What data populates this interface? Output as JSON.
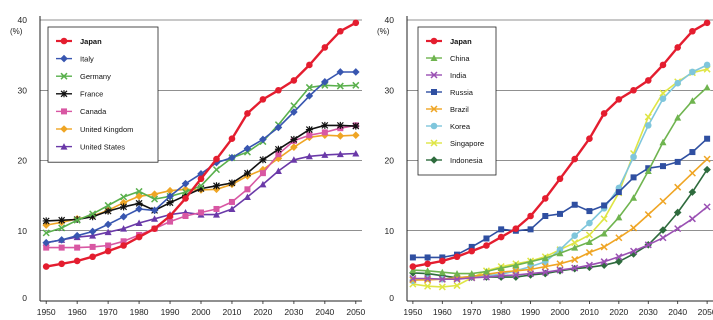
{
  "chart_data": [
    {
      "type": "line",
      "ylabel": "(%)",
      "ytick_labels": [
        "0",
        "10",
        "20",
        "30",
        "40"
      ],
      "xtick_labels": [
        "1950",
        "1960",
        "1970",
        "1980",
        "1990",
        "2000",
        "2010",
        "2020",
        "2030",
        "2040",
        "2050"
      ],
      "x": [
        1950,
        1955,
        1960,
        1965,
        1970,
        1975,
        1980,
        1985,
        1990,
        1995,
        2000,
        2005,
        2010,
        2015,
        2020,
        2025,
        2030,
        2035,
        2040,
        2045,
        2050
      ],
      "ylim": [
        0,
        40
      ],
      "xlim": [
        1948,
        2052
      ],
      "grid": "horizontal",
      "legend_position": "top-left",
      "series": [
        {
          "name": "Japan",
          "color": "#e41d2f",
          "marker": "circle",
          "bold": true,
          "values": [
            4.9,
            5.3,
            5.7,
            6.3,
            7.1,
            7.9,
            9.1,
            10.3,
            12.1,
            14.6,
            17.4,
            20.2,
            23.1,
            26.7,
            28.7,
            30.0,
            31.4,
            33.6,
            36.1,
            38.4,
            39.6
          ]
        },
        {
          "name": "Italy",
          "color": "#3856b0",
          "marker": "diamond",
          "values": [
            8.3,
            8.7,
            9.3,
            9.9,
            10.9,
            12.0,
            13.1,
            12.9,
            14.9,
            16.7,
            18.1,
            19.7,
            20.4,
            21.7,
            23.0,
            24.7,
            26.9,
            29.2,
            31.2,
            32.6,
            32.6
          ]
        },
        {
          "name": "Germany",
          "color": "#5ab04d",
          "marker": "x",
          "values": [
            9.7,
            10.4,
            11.5,
            12.4,
            13.6,
            14.8,
            15.6,
            14.5,
            14.9,
            15.5,
            16.4,
            18.7,
            20.4,
            21.2,
            22.7,
            25.1,
            27.8,
            30.4,
            30.7,
            30.6,
            30.7
          ]
        },
        {
          "name": "France",
          "color": "#111111",
          "marker": "star",
          "values": [
            11.4,
            11.5,
            11.6,
            12.0,
            12.8,
            13.4,
            13.9,
            12.9,
            14.0,
            15.0,
            16.0,
            16.4,
            16.8,
            18.2,
            20.1,
            21.6,
            23.0,
            24.4,
            25.0,
            25.0,
            24.9
          ]
        },
        {
          "name": "Canada",
          "color": "#d857a3",
          "marker": "square",
          "values": [
            7.6,
            7.6,
            7.6,
            7.7,
            7.9,
            8.5,
            9.4,
            10.3,
            11.3,
            12.1,
            12.6,
            13.1,
            14.1,
            15.9,
            18.2,
            20.9,
            22.8,
            23.6,
            24.0,
            24.6,
            25.0
          ]
        },
        {
          "name": "United Kingdom",
          "color": "#efa524",
          "marker": "diamond",
          "values": [
            10.8,
            11.2,
            11.7,
            12.1,
            12.9,
            14.0,
            14.9,
            15.2,
            15.7,
            15.9,
            15.8,
            15.9,
            16.6,
            17.8,
            18.7,
            20.3,
            21.9,
            23.3,
            23.6,
            23.5,
            23.6
          ]
        },
        {
          "name": "United States",
          "color": "#6a39a8",
          "marker": "triangle",
          "values": [
            8.3,
            8.7,
            9.1,
            9.3,
            9.8,
            10.3,
            11.1,
            11.7,
            12.3,
            12.6,
            12.3,
            12.3,
            13.1,
            14.8,
            16.6,
            18.5,
            20.1,
            20.6,
            20.8,
            20.9,
            21.0
          ]
        }
      ]
    },
    {
      "type": "line",
      "ylabel": "(%)",
      "ytick_labels": [
        "0",
        "10",
        "20",
        "30",
        "40"
      ],
      "xtick_labels": [
        "1950",
        "1960",
        "1970",
        "1980",
        "1990",
        "2000",
        "2010",
        "2020",
        "2030",
        "2040",
        "2050"
      ],
      "x": [
        1950,
        1955,
        1960,
        1965,
        1970,
        1975,
        1980,
        1985,
        1990,
        1995,
        2000,
        2005,
        2010,
        2015,
        2020,
        2025,
        2030,
        2035,
        2040,
        2045,
        2050
      ],
      "ylim": [
        0,
        40
      ],
      "xlim": [
        1948,
        2052
      ],
      "grid": "horizontal",
      "legend_position": "top-left",
      "series": [
        {
          "name": "Japan",
          "color": "#e41d2f",
          "marker": "circle",
          "bold": true,
          "values": [
            4.9,
            5.3,
            5.7,
            6.3,
            7.1,
            7.9,
            9.1,
            10.3,
            12.1,
            14.6,
            17.4,
            20.2,
            23.1,
            26.7,
            28.7,
            30.0,
            31.4,
            33.6,
            36.1,
            38.4,
            39.6
          ]
        },
        {
          "name": "China",
          "color": "#6fb44f",
          "marker": "triangle",
          "values": [
            4.4,
            4.3,
            4.1,
            3.9,
            3.9,
            4.2,
            4.7,
            5.1,
            5.6,
            6.1,
            6.8,
            7.6,
            8.4,
            9.6,
            11.9,
            14.7,
            18.5,
            22.6,
            26.1,
            28.5,
            30.4
          ]
        },
        {
          "name": "India",
          "color": "#9a50b3",
          "marker": "x",
          "values": [
            3.2,
            3.2,
            3.1,
            3.1,
            3.3,
            3.4,
            3.6,
            3.7,
            3.9,
            4.1,
            4.4,
            4.7,
            5.1,
            5.6,
            6.3,
            7.1,
            8.0,
            9.0,
            10.3,
            11.7,
            13.4
          ]
        },
        {
          "name": "Russia",
          "color": "#2f4fa1",
          "marker": "square",
          "values": [
            6.2,
            6.2,
            6.2,
            6.6,
            7.7,
            8.9,
            10.2,
            10.0,
            10.2,
            12.1,
            12.4,
            13.7,
            12.8,
            13.6,
            15.5,
            17.6,
            18.9,
            19.2,
            19.8,
            21.2,
            23.1
          ]
        },
        {
          "name": "Brazil",
          "color": "#efa524",
          "marker": "x",
          "values": [
            3.0,
            3.0,
            3.1,
            3.3,
            3.5,
            3.8,
            4.1,
            4.3,
            4.5,
            4.9,
            5.3,
            5.9,
            6.9,
            7.7,
            9.0,
            10.4,
            12.3,
            14.2,
            16.2,
            18.2,
            20.2
          ]
        },
        {
          "name": "Korea",
          "color": "#7fc6dc",
          "marker": "circle",
          "values": [
            2.9,
            3.2,
            3.1,
            3.3,
            3.5,
            3.6,
            3.8,
            4.3,
            4.9,
            5.6,
            7.3,
            9.3,
            11.1,
            13.2,
            16.1,
            20.5,
            25.0,
            28.8,
            31.0,
            32.6,
            33.6
          ]
        },
        {
          "name": "Singapore",
          "color": "#dfe545",
          "marker": "x",
          "values": [
            2.4,
            2.1,
            2.0,
            2.2,
            3.3,
            4.3,
            4.9,
            5.3,
            5.7,
            6.3,
            7.3,
            8.3,
            9.4,
            11.7,
            15.4,
            21.0,
            26.2,
            29.6,
            31.2,
            32.5,
            33.0
          ]
        },
        {
          "name": "Indonesia",
          "color": "#2e6b3d",
          "marker": "diamond",
          "values": [
            4.0,
            3.9,
            3.6,
            3.3,
            3.4,
            3.4,
            3.4,
            3.4,
            3.7,
            3.9,
            4.3,
            4.6,
            4.8,
            5.1,
            5.6,
            6.7,
            8.0,
            10.1,
            12.6,
            15.5,
            18.7
          ]
        }
      ]
    }
  ]
}
